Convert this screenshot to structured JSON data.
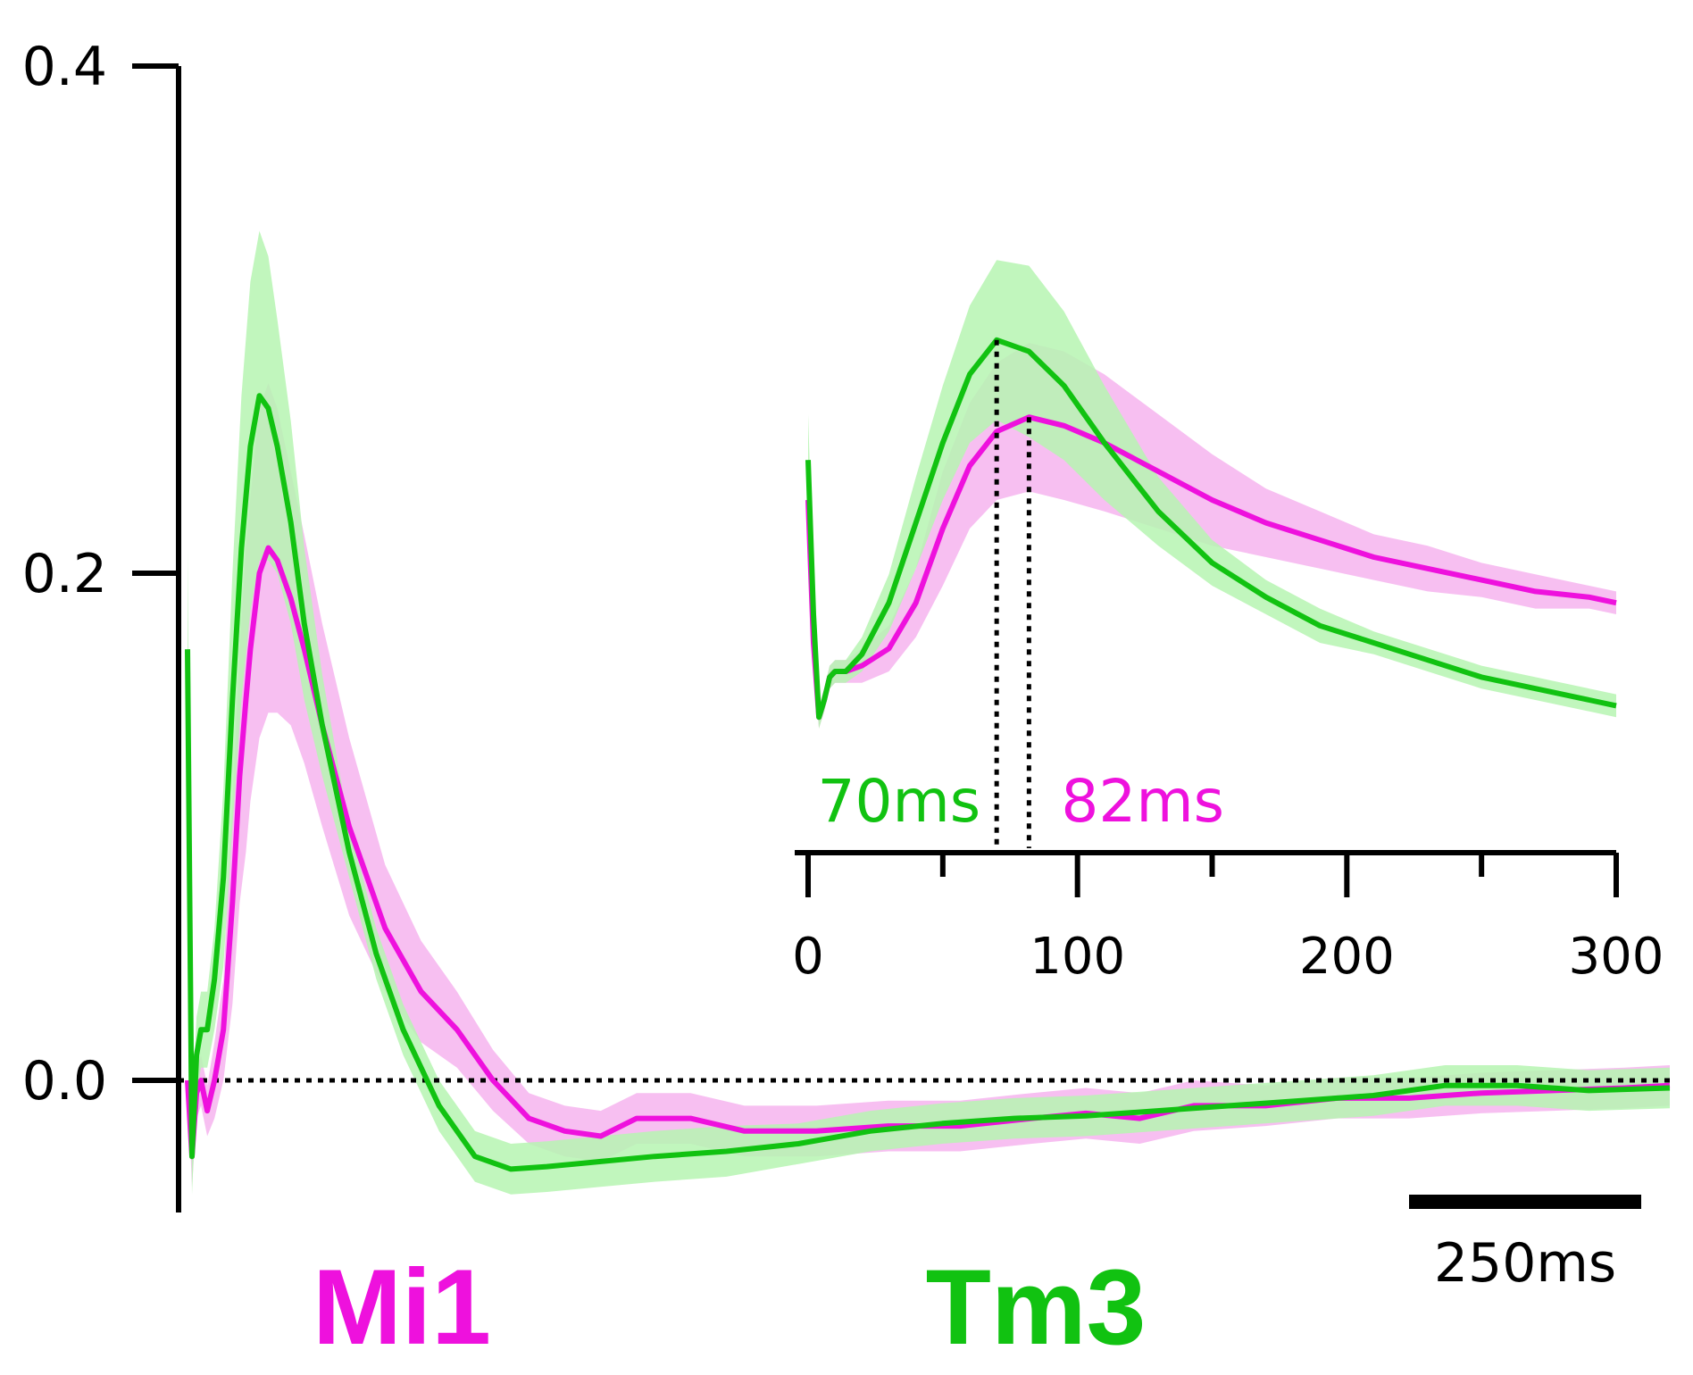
{
  "colors": {
    "mi1": "#ee11dd",
    "mi1_band": "#f6b4ee",
    "tm3": "#11c211",
    "tm3_band": "#b6f5b2",
    "axis": "#000000"
  },
  "legend": {
    "mi1": "Mi1",
    "tm3": "Tm3"
  },
  "scale_bar": {
    "label": "250ms",
    "duration_ms": 250
  },
  "chart_data": [
    {
      "type": "line",
      "title": "",
      "xlabel": "",
      "ylabel": "",
      "x_unit": "ms",
      "xlim": [
        0,
        1650
      ],
      "ylim": [
        -0.05,
        0.4
      ],
      "yticks": [
        0.0,
        0.2,
        0.4
      ],
      "ytick_labels": [
        "0.0",
        "0.2",
        "0.4"
      ],
      "zero_line": "dotted",
      "series": [
        {
          "name": "Mi1",
          "color": "#ee11dd",
          "x": [
            0,
            5,
            10,
            15,
            22,
            30,
            40,
            50,
            58,
            65,
            70,
            80,
            90,
            100,
            115,
            130,
            150,
            180,
            220,
            260,
            300,
            340,
            380,
            420,
            460,
            500,
            560,
            620,
            700,
            780,
            860,
            940,
            1000,
            1060,
            1120,
            1200,
            1280,
            1360,
            1440,
            1520,
            1600,
            1650
          ],
          "y": [
            0.0,
            -0.03,
            -0.005,
            0.0,
            -0.012,
            0.0,
            0.02,
            0.07,
            0.12,
            0.15,
            0.17,
            0.2,
            0.21,
            0.205,
            0.19,
            0.17,
            0.14,
            0.1,
            0.06,
            0.035,
            0.02,
            0.0,
            -0.015,
            -0.02,
            -0.022,
            -0.015,
            -0.015,
            -0.02,
            -0.02,
            -0.018,
            -0.018,
            -0.015,
            -0.013,
            -0.015,
            -0.01,
            -0.01,
            -0.007,
            -0.007,
            -0.005,
            -0.004,
            -0.003,
            -0.002
          ],
          "error_band": [
            0.0,
            0.012,
            0.01,
            0.01,
            0.01,
            0.015,
            0.02,
            0.04,
            0.05,
            0.06,
            0.06,
            0.065,
            0.065,
            0.06,
            0.05,
            0.045,
            0.04,
            0.035,
            0.025,
            0.02,
            0.015,
            0.012,
            0.01,
            0.01,
            0.01,
            0.01,
            0.01,
            0.01,
            0.01,
            0.01,
            0.01,
            0.01,
            0.01,
            0.01,
            0.01,
            0.008,
            0.008,
            0.008,
            0.008,
            0.008,
            0.008,
            0.008
          ]
        },
        {
          "name": "Tm3",
          "color": "#11c211",
          "x": [
            0,
            5,
            10,
            15,
            22,
            30,
            40,
            50,
            60,
            70,
            80,
            90,
            100,
            115,
            130,
            150,
            180,
            210,
            240,
            280,
            320,
            360,
            400,
            460,
            520,
            600,
            680,
            760,
            840,
            920,
            1000,
            1080,
            1160,
            1240,
            1320,
            1400,
            1480,
            1560,
            1650
          ],
          "y": [
            0.17,
            -0.03,
            0.01,
            0.02,
            0.02,
            0.04,
            0.08,
            0.15,
            0.21,
            0.25,
            0.27,
            0.265,
            0.25,
            0.22,
            0.18,
            0.14,
            0.09,
            0.05,
            0.02,
            -0.01,
            -0.03,
            -0.035,
            -0.034,
            -0.032,
            -0.03,
            -0.028,
            -0.025,
            -0.02,
            -0.017,
            -0.015,
            -0.014,
            -0.012,
            -0.01,
            -0.008,
            -0.006,
            -0.002,
            -0.002,
            -0.004,
            -0.003
          ],
          "error_band": [
            0.04,
            0.015,
            0.015,
            0.015,
            0.015,
            0.02,
            0.035,
            0.05,
            0.06,
            0.065,
            0.065,
            0.06,
            0.05,
            0.04,
            0.03,
            0.02,
            0.01,
            0.01,
            0.01,
            0.01,
            0.01,
            0.01,
            0.01,
            0.01,
            0.01,
            0.01,
            0.008,
            0.008,
            0.008,
            0.008,
            0.008,
            0.008,
            0.008,
            0.008,
            0.008,
            0.008,
            0.008,
            0.008,
            0.008
          ]
        }
      ]
    },
    {
      "type": "line",
      "title": "",
      "xlabel": "",
      "ylabel": "",
      "x_unit": "ms",
      "xlim": [
        0,
        300
      ],
      "ylim": [
        0,
        1
      ],
      "xticks": [
        0,
        50,
        100,
        150,
        200,
        250,
        300
      ],
      "xtick_labels": [
        "0",
        "",
        "100",
        "",
        "200",
        "",
        "300"
      ],
      "annotations": [
        {
          "series": "Tm3",
          "text": "70ms",
          "x": 70
        },
        {
          "series": "Mi1",
          "text": "82ms",
          "x": 82
        }
      ],
      "series": [
        {
          "name": "Mi1",
          "color": "#ee11dd",
          "x": [
            0,
            2,
            4,
            6,
            8,
            10,
            14,
            20,
            30,
            40,
            50,
            60,
            70,
            82,
            95,
            110,
            130,
            150,
            170,
            190,
            210,
            230,
            250,
            270,
            290,
            300
          ],
          "y": [
            0.5,
            0.25,
            0.12,
            0.15,
            0.19,
            0.2,
            0.2,
            0.21,
            0.24,
            0.32,
            0.45,
            0.56,
            0.62,
            0.645,
            0.63,
            0.6,
            0.55,
            0.5,
            0.46,
            0.43,
            0.4,
            0.38,
            0.36,
            0.34,
            0.33,
            0.32
          ],
          "error_band": [
            0.03,
            0.03,
            0.02,
            0.02,
            0.02,
            0.02,
            0.02,
            0.03,
            0.04,
            0.06,
            0.1,
            0.11,
            0.12,
            0.13,
            0.13,
            0.12,
            0.1,
            0.08,
            0.06,
            0.05,
            0.04,
            0.04,
            0.03,
            0.03,
            0.02,
            0.02
          ]
        },
        {
          "name": "Tm3",
          "color": "#11c211",
          "x": [
            0,
            2,
            4,
            6,
            8,
            10,
            14,
            20,
            30,
            40,
            50,
            60,
            70,
            82,
            95,
            110,
            130,
            150,
            170,
            190,
            210,
            230,
            250,
            270,
            290,
            300
          ],
          "y": [
            0.57,
            0.3,
            0.12,
            0.15,
            0.19,
            0.2,
            0.2,
            0.23,
            0.32,
            0.46,
            0.6,
            0.72,
            0.78,
            0.76,
            0.7,
            0.6,
            0.48,
            0.39,
            0.33,
            0.28,
            0.25,
            0.22,
            0.19,
            0.17,
            0.15,
            0.14
          ],
          "error_band": [
            0.08,
            0.06,
            0.02,
            0.02,
            0.02,
            0.02,
            0.02,
            0.03,
            0.05,
            0.08,
            0.1,
            0.12,
            0.14,
            0.15,
            0.13,
            0.1,
            0.06,
            0.04,
            0.03,
            0.03,
            0.02,
            0.02,
            0.02,
            0.02,
            0.02,
            0.02
          ]
        }
      ]
    }
  ]
}
